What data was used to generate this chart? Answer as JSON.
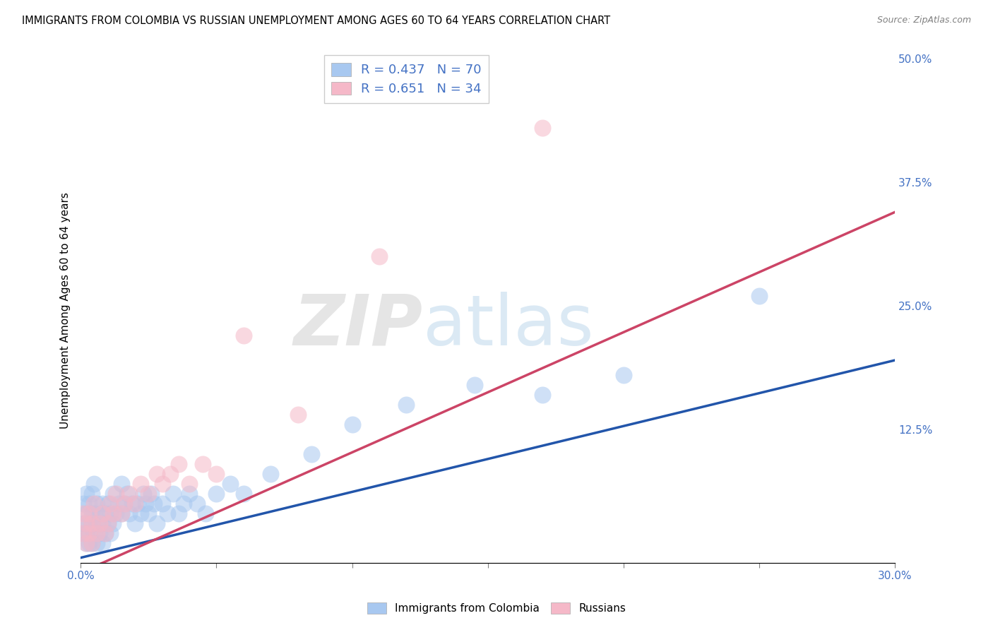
{
  "title": "IMMIGRANTS FROM COLOMBIA VS RUSSIAN UNEMPLOYMENT AMONG AGES 60 TO 64 YEARS CORRELATION CHART",
  "source": "Source: ZipAtlas.com",
  "ylabel": "Unemployment Among Ages 60 to 64 years",
  "xlim": [
    0.0,
    0.3
  ],
  "ylim": [
    -0.01,
    0.5
  ],
  "xticks": [
    0.0,
    0.05,
    0.1,
    0.15,
    0.2,
    0.25,
    0.3
  ],
  "xticklabels": [
    "0.0%",
    "",
    "",
    "",
    "",
    "",
    "30.0%"
  ],
  "yticks": [
    0.0,
    0.125,
    0.25,
    0.375,
    0.5
  ],
  "yticklabels": [
    "",
    "12.5%",
    "25.0%",
    "37.5%",
    "50.0%"
  ],
  "legend1_label": "R = 0.437   N = 70",
  "legend2_label": "R = 0.651   N = 34",
  "colombia_color": "#A8C8F0",
  "russia_color": "#F5B8C8",
  "colombia_line_color": "#2255AA",
  "russia_line_color": "#CC4466",
  "watermark_zip": "ZIP",
  "watermark_atlas": "atlas",
  "colombia_scatter_x": [
    0.001,
    0.001,
    0.001,
    0.002,
    0.002,
    0.002,
    0.002,
    0.003,
    0.003,
    0.003,
    0.003,
    0.004,
    0.004,
    0.004,
    0.004,
    0.005,
    0.005,
    0.005,
    0.006,
    0.006,
    0.006,
    0.007,
    0.007,
    0.008,
    0.008,
    0.008,
    0.009,
    0.009,
    0.01,
    0.01,
    0.011,
    0.011,
    0.012,
    0.012,
    0.013,
    0.014,
    0.015,
    0.015,
    0.016,
    0.017,
    0.018,
    0.019,
    0.02,
    0.021,
    0.022,
    0.023,
    0.024,
    0.025,
    0.026,
    0.027,
    0.028,
    0.03,
    0.032,
    0.034,
    0.036,
    0.038,
    0.04,
    0.043,
    0.046,
    0.05,
    0.055,
    0.06,
    0.07,
    0.085,
    0.1,
    0.12,
    0.145,
    0.17,
    0.2,
    0.25
  ],
  "colombia_scatter_y": [
    0.02,
    0.03,
    0.05,
    0.01,
    0.02,
    0.04,
    0.06,
    0.01,
    0.02,
    0.03,
    0.05,
    0.01,
    0.03,
    0.04,
    0.06,
    0.02,
    0.04,
    0.07,
    0.01,
    0.03,
    0.05,
    0.02,
    0.04,
    0.01,
    0.03,
    0.05,
    0.02,
    0.04,
    0.03,
    0.05,
    0.02,
    0.04,
    0.03,
    0.06,
    0.04,
    0.05,
    0.04,
    0.07,
    0.05,
    0.06,
    0.04,
    0.05,
    0.03,
    0.05,
    0.04,
    0.06,
    0.05,
    0.04,
    0.06,
    0.05,
    0.03,
    0.05,
    0.04,
    0.06,
    0.04,
    0.05,
    0.06,
    0.05,
    0.04,
    0.06,
    0.07,
    0.06,
    0.08,
    0.1,
    0.13,
    0.15,
    0.17,
    0.16,
    0.18,
    0.26
  ],
  "russia_scatter_x": [
    0.001,
    0.001,
    0.002,
    0.002,
    0.003,
    0.003,
    0.004,
    0.004,
    0.005,
    0.006,
    0.007,
    0.008,
    0.009,
    0.01,
    0.011,
    0.012,
    0.013,
    0.015,
    0.016,
    0.018,
    0.02,
    0.022,
    0.025,
    0.028,
    0.03,
    0.033,
    0.036,
    0.04,
    0.045,
    0.05,
    0.06,
    0.08,
    0.11,
    0.17
  ],
  "russia_scatter_y": [
    0.02,
    0.04,
    0.01,
    0.03,
    0.02,
    0.04,
    0.01,
    0.03,
    0.05,
    0.02,
    0.03,
    0.04,
    0.02,
    0.03,
    0.05,
    0.04,
    0.06,
    0.04,
    0.05,
    0.06,
    0.05,
    0.07,
    0.06,
    0.08,
    0.07,
    0.08,
    0.09,
    0.07,
    0.09,
    0.08,
    0.22,
    0.14,
    0.3,
    0.43
  ],
  "colombia_line_x": [
    0.0,
    0.3
  ],
  "colombia_line_y": [
    -0.005,
    0.195
  ],
  "russia_line_x": [
    0.0,
    0.3
  ],
  "russia_line_y": [
    -0.02,
    0.345
  ]
}
